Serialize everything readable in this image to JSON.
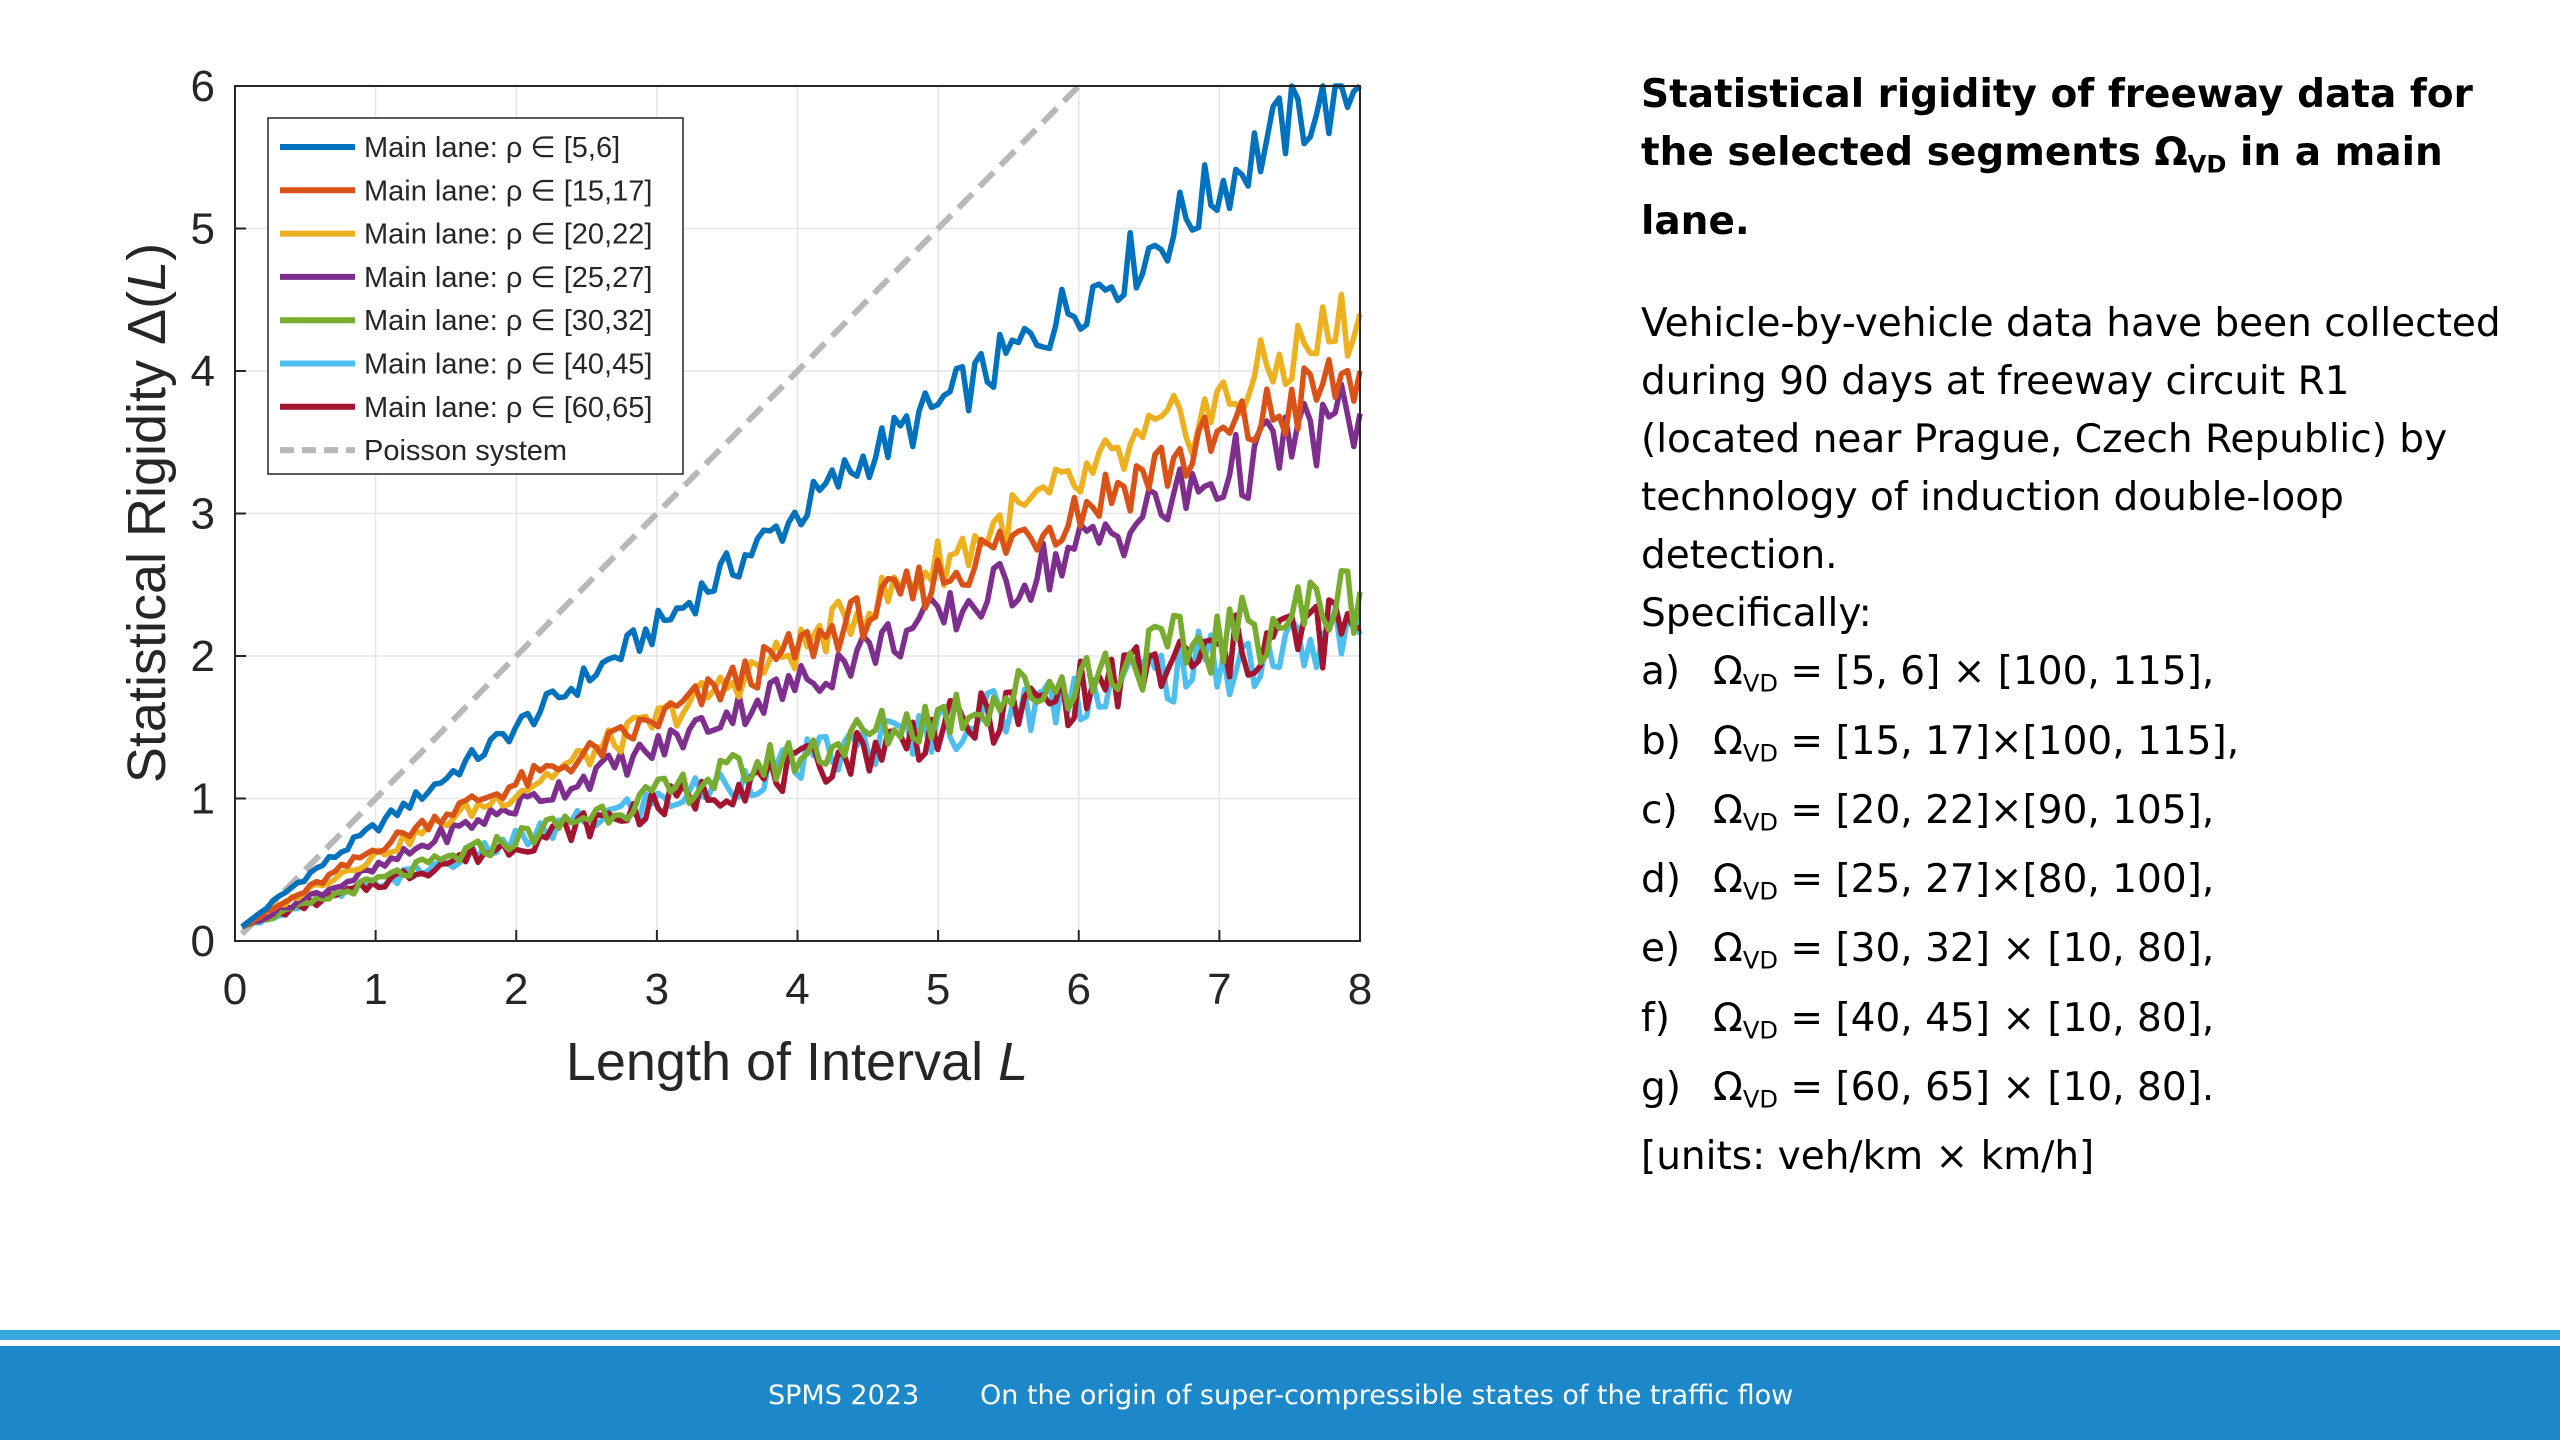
{
  "chart_data": {
    "type": "line",
    "xlabel": "Length of Interval",
    "xlabel_var": "L",
    "ylabel": "Statistical Rigidity Δ(",
    "ylabel_var": "L",
    "ylabel_close": ")",
    "xlim": [
      0,
      8
    ],
    "ylim": [
      0,
      6
    ],
    "xticks": [
      0,
      1,
      2,
      3,
      4,
      5,
      6,
      7,
      8
    ],
    "yticks": [
      0,
      1,
      2,
      3,
      4,
      5,
      6
    ],
    "grid": true,
    "legend_position": "top-left",
    "x": [
      0.05,
      0.5,
      1,
      1.5,
      2,
      2.5,
      3,
      3.5,
      4,
      4.5,
      5,
      5.5,
      6,
      6.5,
      7,
      7.5,
      8
    ],
    "series": [
      {
        "name": "Main lane: ρ ∈ [5,6]",
        "color": "#0072bd",
        "style": "solid",
        "values": [
          0.1,
          0.45,
          0.8,
          1.15,
          1.5,
          1.85,
          2.2,
          2.6,
          3.0,
          3.4,
          3.75,
          4.1,
          4.5,
          4.85,
          5.3,
          5.75,
          6.0
        ]
      },
      {
        "name": "Main lane: ρ ∈ [15,17]",
        "color": "#d95319",
        "style": "solid",
        "values": [
          0.1,
          0.35,
          0.65,
          0.9,
          1.1,
          1.3,
          1.55,
          1.8,
          2.05,
          2.3,
          2.55,
          2.8,
          3.05,
          3.3,
          3.5,
          3.75,
          4.0
        ]
      },
      {
        "name": "Main lane: ρ ∈ [20,22]",
        "color": "#edb120",
        "style": "solid",
        "values": [
          0.1,
          0.35,
          0.6,
          0.85,
          1.05,
          1.3,
          1.55,
          1.8,
          2.05,
          2.35,
          2.65,
          2.95,
          3.2,
          3.5,
          3.75,
          4.1,
          4.4
        ]
      },
      {
        "name": "Main lane: ρ ∈ [25,27]",
        "color": "#7e2f8e",
        "style": "solid",
        "values": [
          0.1,
          0.3,
          0.5,
          0.75,
          0.95,
          1.15,
          1.35,
          1.6,
          1.8,
          2.05,
          2.25,
          2.5,
          2.75,
          3.0,
          3.25,
          3.5,
          3.7
        ]
      },
      {
        "name": "Main lane: ρ ∈ [30,32]",
        "color": "#77ac30",
        "style": "solid",
        "values": [
          0.1,
          0.25,
          0.42,
          0.57,
          0.72,
          0.88,
          1.02,
          1.17,
          1.3,
          1.45,
          1.58,
          1.72,
          1.85,
          2.0,
          2.12,
          2.28,
          2.45
        ]
      },
      {
        "name": "Main lane: ρ ∈ [40,45]",
        "color": "#4dbeee",
        "style": "solid",
        "values": [
          0.1,
          0.25,
          0.4,
          0.55,
          0.7,
          0.85,
          0.98,
          1.1,
          1.25,
          1.38,
          1.5,
          1.62,
          1.75,
          1.88,
          1.95,
          2.05,
          2.15
        ]
      },
      {
        "name": "Main lane: ρ ∈ [60,65]",
        "color": "#a2142f",
        "style": "solid",
        "values": [
          0.1,
          0.25,
          0.4,
          0.55,
          0.68,
          0.82,
          0.95,
          1.08,
          1.2,
          1.35,
          1.48,
          1.6,
          1.75,
          1.9,
          2.0,
          2.15,
          2.2
        ]
      },
      {
        "name": "Poisson system",
        "color": "#b8b8b8",
        "style": "dashed",
        "x": [
          0.05,
          6.0
        ],
        "values": [
          0.05,
          6.0
        ]
      }
    ]
  },
  "panel": {
    "title_pre": "Statistical rigidity of freeway data for the selected segments Ω",
    "title_sub": "VD",
    "title_post": " in a main lane.",
    "body_text": "Vehicle-by-vehicle data have been collected during 90 days at freeway circuit R1 (located near Prague, Czech Republic) by technology of induction double-loop detection.",
    "specifically": "Specifically:",
    "omega": "Ω",
    "omega_sub": "VD",
    "segments": [
      {
        "letter": "a)",
        "value": " = [5, 6] × [100, 115],"
      },
      {
        "letter": "b)",
        "value": " = [15, 17]×[100, 115],"
      },
      {
        "letter": "c)",
        "value": " = [20, 22]×[90, 105],"
      },
      {
        "letter": "d)",
        "value": " = [25, 27]×[80, 100],"
      },
      {
        "letter": "e)",
        "value": " = [30, 32] × [10, 80],"
      },
      {
        "letter": "f)",
        "value": " = [40, 45] × [10, 80],"
      },
      {
        "letter": "g)",
        "value": " = [60, 65] × [10, 80]."
      }
    ],
    "units": "[units: veh/km × km/h]"
  },
  "footer": {
    "conference": "SPMS 2023",
    "title": "On the origin of super-compressible states of the traffic flow",
    "bar_color": "#1c87c9",
    "line_color": "#35a7dc"
  }
}
